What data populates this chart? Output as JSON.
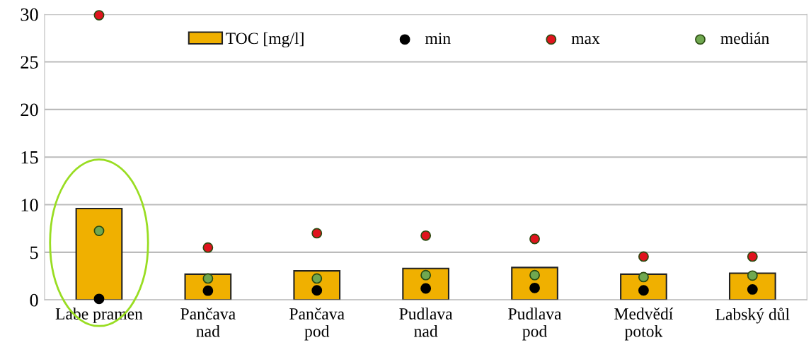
{
  "chart_data": {
    "type": "bar",
    "categories": [
      "Labe pramen",
      "Pančava\nnad",
      "Pančava\npod",
      "Pudlava\nnad",
      "Pudlava\npod",
      "Medvědí\npotok",
      "Labský důl"
    ],
    "series": [
      {
        "name": "TOC [mg/l]",
        "color": "#f0b000",
        "values": [
          9.6,
          2.7,
          3.05,
          3.3,
          3.4,
          2.7,
          2.8
        ]
      },
      {
        "name": "min",
        "type": "scatter",
        "color": "#000000",
        "values": [
          0.1,
          0.97,
          1.0,
          1.2,
          1.25,
          1.0,
          1.1
        ]
      },
      {
        "name": "max",
        "type": "scatter",
        "color": "#e0141e",
        "values": [
          29.9,
          5.5,
          7.0,
          6.75,
          6.4,
          4.55,
          4.55
        ]
      },
      {
        "name": "medián",
        "type": "scatter",
        "color": "#70a850",
        "values": [
          7.25,
          2.25,
          2.25,
          2.6,
          2.6,
          2.4,
          2.55
        ]
      }
    ],
    "ylim": [
      0,
      30
    ],
    "yticks": [
      0,
      5,
      10,
      15,
      20,
      25,
      30
    ],
    "grid": "y",
    "legend": "top",
    "marker": "circle"
  }
}
